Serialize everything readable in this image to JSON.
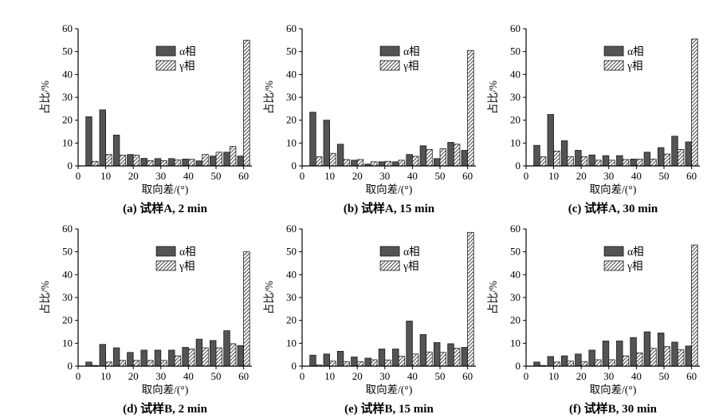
{
  "page": {
    "background": "#ffffff"
  },
  "style": {
    "alpha_color": "#545454",
    "hatch_line_color": "#333333",
    "bar_stroke": "#1a1a1a",
    "axis_color": "#000000"
  },
  "axes": {
    "xticks": [
      0,
      10,
      20,
      30,
      40,
      50,
      60
    ],
    "yticks": [
      0,
      10,
      20,
      30,
      40,
      50,
      60
    ]
  },
  "chart_data": [
    {
      "type": "bar",
      "title": "(a) 试样A, 2 min",
      "xlabel": "取向差/(°)",
      "ylabel": "占比/%",
      "xlim": [
        0,
        63
      ],
      "ylim": [
        0,
        60
      ],
      "categories": [
        5,
        10,
        15,
        20,
        25,
        30,
        35,
        40,
        45,
        50,
        55,
        60
      ],
      "series": [
        {
          "name": "α相",
          "values": [
            21.5,
            24.5,
            13.5,
            5.0,
            3.3,
            3.2,
            3.2,
            3.0,
            2.2,
            4.3,
            6.0,
            4.3
          ]
        },
        {
          "name": "γ相",
          "values": [
            2.0,
            5.0,
            4.7,
            4.7,
            2.3,
            2.3,
            2.6,
            2.9,
            5.0,
            6.0,
            8.5,
            55.0
          ]
        }
      ],
      "legend_position": "upper-center"
    },
    {
      "type": "bar",
      "title": "(b) 试样A, 15 min",
      "xlabel": "取向差/(°)",
      "ylabel": "占比/%",
      "xlim": [
        0,
        63
      ],
      "ylim": [
        0,
        60
      ],
      "categories": [
        5,
        10,
        15,
        20,
        25,
        30,
        35,
        40,
        45,
        50,
        55,
        60
      ],
      "series": [
        {
          "name": "α相",
          "values": [
            23.5,
            20.0,
            9.5,
            2.5,
            0.8,
            1.8,
            1.8,
            5.0,
            8.8,
            3.2,
            10.3,
            6.8
          ]
        },
        {
          "name": "γ相",
          "values": [
            4.0,
            5.5,
            2.8,
            2.8,
            1.8,
            2.0,
            2.5,
            4.2,
            7.2,
            7.5,
            9.5,
            50.5
          ]
        }
      ],
      "legend_position": "upper-center"
    },
    {
      "type": "bar",
      "title": "(c) 试样A, 30 min",
      "xlabel": "取向差/(°)",
      "ylabel": "占比/%",
      "xlim": [
        0,
        63
      ],
      "ylim": [
        0,
        60
      ],
      "categories": [
        5,
        10,
        15,
        20,
        25,
        30,
        35,
        40,
        45,
        50,
        55,
        60
      ],
      "series": [
        {
          "name": "α相",
          "values": [
            9.0,
            22.5,
            11.0,
            6.8,
            4.8,
            4.5,
            4.5,
            3.0,
            6.0,
            8.0,
            13.0,
            10.5
          ]
        },
        {
          "name": "γ相",
          "values": [
            4.0,
            6.5,
            4.0,
            4.0,
            2.5,
            2.5,
            2.8,
            3.0,
            3.0,
            5.2,
            7.2,
            55.5
          ]
        }
      ],
      "legend_position": "upper-center"
    },
    {
      "type": "bar",
      "title": "(d) 试样B, 2 min",
      "xlabel": "取向差/(°)",
      "ylabel": "占比/%",
      "xlim": [
        0,
        63
      ],
      "ylim": [
        0,
        60
      ],
      "categories": [
        5,
        10,
        15,
        20,
        25,
        30,
        35,
        40,
        45,
        50,
        55,
        60
      ],
      "series": [
        {
          "name": "α相",
          "values": [
            1.8,
            9.5,
            8.0,
            6.0,
            7.0,
            7.0,
            7.0,
            8.2,
            11.8,
            11.2,
            15.5,
            9.0
          ]
        },
        {
          "name": "γ相",
          "values": [
            0.3,
            1.8,
            2.5,
            2.5,
            2.5,
            2.5,
            4.5,
            7.5,
            8.0,
            8.0,
            9.8,
            50.0
          ]
        }
      ],
      "legend_position": "upper-center"
    },
    {
      "type": "bar",
      "title": "(e) 试样B, 15 min",
      "xlabel": "取向差/(°)",
      "ylabel": "占比/%",
      "xlim": [
        0,
        63
      ],
      "ylim": [
        0,
        60
      ],
      "categories": [
        5,
        10,
        15,
        20,
        25,
        30,
        35,
        40,
        45,
        50,
        55,
        60
      ],
      "series": [
        {
          "name": "α相",
          "values": [
            4.8,
            5.3,
            6.5,
            4.0,
            3.5,
            7.5,
            7.5,
            19.7,
            13.8,
            10.3,
            9.8,
            8.2
          ]
        },
        {
          "name": "γ相",
          "values": [
            0.5,
            2.2,
            2.0,
            2.0,
            2.8,
            2.7,
            4.3,
            5.3,
            6.2,
            6.0,
            7.8,
            58.5
          ]
        }
      ],
      "legend_position": "upper-center"
    },
    {
      "type": "bar",
      "title": "(f) 试样B, 30 min",
      "xlabel": "取向差/(°)",
      "ylabel": "占比/%",
      "xlim": [
        0,
        63
      ],
      "ylim": [
        0,
        60
      ],
      "categories": [
        5,
        10,
        15,
        20,
        25,
        30,
        35,
        40,
        45,
        50,
        55,
        60
      ],
      "series": [
        {
          "name": "α相",
          "values": [
            1.8,
            4.2,
            4.5,
            5.3,
            7.0,
            11.0,
            11.0,
            12.5,
            15.0,
            14.5,
            10.5,
            8.8
          ]
        },
        {
          "name": "γ相",
          "values": [
            0.3,
            1.8,
            2.2,
            2.0,
            2.8,
            2.8,
            4.5,
            5.8,
            7.8,
            8.5,
            7.2,
            53.0
          ]
        }
      ],
      "legend_position": "upper-center"
    }
  ]
}
